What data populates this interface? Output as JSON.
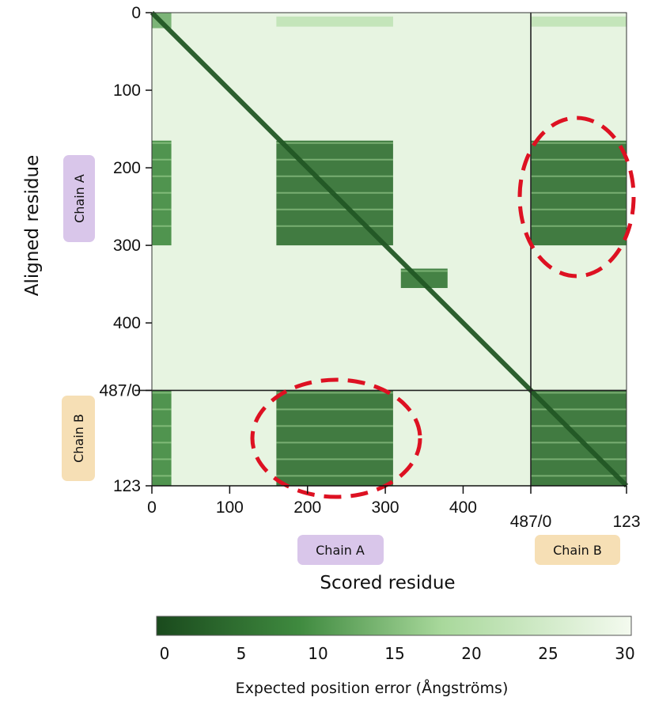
{
  "chart_data": {
    "type": "heatmap",
    "title": "",
    "xlabel": "Scored residue",
    "ylabel": "Aligned residue",
    "x_ticks": [
      "0",
      "100",
      "200",
      "300",
      "400",
      "487/0",
      "123"
    ],
    "y_ticks": [
      "0",
      "100",
      "200",
      "300",
      "400",
      "487/0",
      "123"
    ],
    "chains": [
      {
        "name": "Chain A",
        "length": 487,
        "color": "#d9c6ea"
      },
      {
        "name": "Chain B",
        "length": 123,
        "color": "#f6dfb5"
      }
    ],
    "total_residues": 610,
    "colorbar": {
      "label": "Expected position error (Ångströms)",
      "min": 0,
      "max": 30,
      "ticks": [
        "0",
        "5",
        "10",
        "15",
        "20",
        "25",
        "30"
      ],
      "low_color": "#1a4a1d",
      "high_color": "#f4faef"
    },
    "low_error_blocks": [
      {
        "x": [
          0,
          610
        ],
        "y": [
          0,
          610
        ],
        "note": "diagonal",
        "error": 2
      },
      {
        "x": [
          160,
          310
        ],
        "y": [
          165,
          300
        ],
        "error": 5
      },
      {
        "x": [
          487,
          610
        ],
        "y": [
          165,
          300
        ],
        "error": 5
      },
      {
        "x": [
          160,
          310
        ],
        "y": [
          487,
          610
        ],
        "error": 5
      },
      {
        "x": [
          487,
          610
        ],
        "y": [
          487,
          610
        ],
        "error": 5
      },
      {
        "x": [
          0,
          25
        ],
        "y": [
          165,
          300
        ],
        "error": 9
      },
      {
        "x": [
          0,
          25
        ],
        "y": [
          487,
          610
        ],
        "error": 9
      },
      {
        "x": [
          320,
          380
        ],
        "y": [
          330,
          355
        ],
        "error": 6
      }
    ],
    "highlights": [
      {
        "region": "Chain A vs Chain B",
        "color": "#dd1122"
      },
      {
        "region": "Chain B vs Chain A",
        "color": "#dd1122"
      }
    ]
  }
}
